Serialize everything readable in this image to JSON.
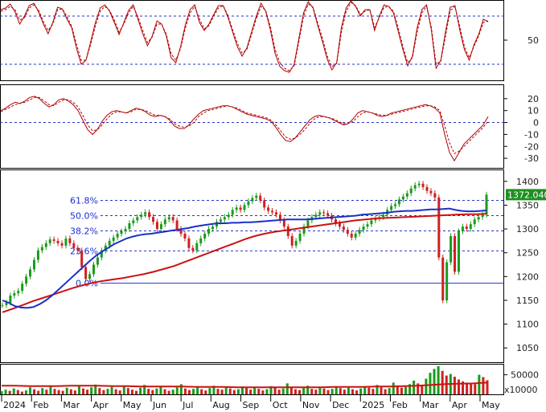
{
  "chart_data": {
    "type": "line",
    "colors": {
      "background": "#ffffff",
      "frame": "#000000",
      "up_bar": "#1a9b1a",
      "down_bar": "#d02020",
      "ma_short": "#1a30c8",
      "ma_long": "#cc1111",
      "oscillator": "#b00000",
      "guide": "#2233cc",
      "price_box": "#1f8f1f"
    },
    "x_axis": {
      "months": [
        "2024",
        "Feb",
        "Mar",
        "Apr",
        "May",
        "Jun",
        "Jul",
        "Aug",
        "Sep",
        "Oct",
        "Nov",
        "Dec",
        "2025",
        "Feb",
        "Mar",
        "Apr",
        "May"
      ]
    },
    "panels": [
      {
        "id": "stochastic",
        "range": [
          0,
          100
        ],
        "ticks": [
          {
            "value": 50,
            "label": "50"
          }
        ],
        "guide_lines": [
          80,
          20
        ],
        "series": [
          {
            "style": "solid",
            "values": [
              88,
              90,
              95,
              85,
              70,
              80,
              93,
              96,
              85,
              70,
              58,
              72,
              91,
              89,
              76,
              65,
              40,
              20,
              25,
              48,
              72,
              90,
              94,
              86,
              72,
              57,
              72,
              87,
              94,
              76,
              58,
              43,
              55,
              74,
              70,
              55,
              28,
              22,
              42,
              69,
              88,
              94,
              72,
              62,
              70,
              82,
              93,
              93,
              79,
              60,
              42,
              30,
              40,
              60,
              80,
              96,
              86,
              62,
              33,
              17,
              12,
              10,
              20,
              52,
              84,
              98,
              90,
              68,
              48,
              26,
              13,
              22,
              66,
              90,
              99,
              92,
              80,
              88,
              88,
              62,
              80,
              94,
              92,
              84,
              61,
              38,
              18,
              30,
              65,
              88,
              94,
              63,
              15,
              25,
              60,
              91,
              93,
              63,
              38,
              25,
              44,
              57,
              76,
              73
            ]
          },
          {
            "style": "dashed",
            "values": [
              86,
              88,
              92,
              88,
              75,
              78,
              90,
              94,
              87,
              73,
              62,
              70,
              88,
              89,
              79,
              67,
              45,
              25,
              25,
              45,
              68,
              86,
              92,
              87,
              75,
              60,
              70,
              84,
              92,
              79,
              62,
              47,
              54,
              70,
              70,
              57,
              33,
              25,
              40,
              65,
              84,
              92,
              76,
              64,
              68,
              80,
              90,
              93,
              81,
              63,
              46,
              34,
              38,
              57,
              77,
              92,
              87,
              66,
              38,
              22,
              15,
              12,
              18,
              48,
              80,
              95,
              91,
              71,
              52,
              30,
              17,
              21,
              60,
              86,
              97,
              93,
              82,
              86,
              88,
              66,
              78,
              91,
              92,
              86,
              65,
              42,
              22,
              28,
              60,
              84,
              92,
              66,
              20,
              24,
              55,
              87,
              92,
              67,
              42,
              28,
              42,
              55,
              72,
              74
            ]
          }
        ]
      },
      {
        "id": "macd",
        "range": [
          -38,
          32
        ],
        "ticks": [
          {
            "value": 20,
            "label": "20"
          },
          {
            "value": 10,
            "label": "10"
          },
          {
            "value": 0,
            "label": "0"
          },
          {
            "value": -10,
            "label": "-10"
          },
          {
            "value": -20,
            "label": "-20"
          },
          {
            "value": -30,
            "label": "-30"
          }
        ],
        "guide_lines": [
          0
        ],
        "series": [
          {
            "style": "solid",
            "values": [
              10,
              12,
              15,
              17,
              16,
              18,
              21,
              22,
              20,
              16,
              13,
              15,
              19,
              20,
              18,
              15,
              10,
              2,
              -6,
              -10,
              -6,
              1,
              6,
              9,
              10,
              9,
              8,
              10,
              12,
              11,
              9,
              6,
              5,
              6,
              5,
              2,
              -3,
              -5,
              -5,
              -2,
              3,
              7,
              10,
              11,
              12,
              13,
              14,
              14,
              13,
              11,
              9,
              7,
              6,
              5,
              4,
              3,
              1,
              -4,
              -10,
              -15,
              -16,
              -13,
              -8,
              -3,
              2,
              5,
              6,
              5,
              4,
              2,
              0,
              -2,
              -1,
              3,
              8,
              10,
              9,
              8,
              6,
              5,
              6,
              8,
              9,
              10,
              11,
              12,
              13,
              14,
              15,
              14,
              12,
              8,
              -10,
              -25,
              -32,
              -25,
              -18,
              -14,
              -10,
              -6,
              -2,
              5
            ]
          },
          {
            "style": "dashed",
            "values": [
              9,
              11,
              13,
              15,
              16,
              17,
              19,
              21,
              21,
              18,
              15,
              14,
              17,
              19,
              19,
              17,
              13,
              6,
              -2,
              -7,
              -6,
              -2,
              3,
              7,
              9,
              9,
              8,
              9,
              11,
              11,
              10,
              8,
              6,
              6,
              5,
              3,
              -1,
              -3,
              -4,
              -3,
              0,
              5,
              8,
              10,
              11,
              12,
              13,
              14,
              13,
              12,
              10,
              8,
              7,
              6,
              5,
              4,
              2,
              -2,
              -7,
              -12,
              -14,
              -13,
              -10,
              -6,
              -1,
              3,
              5,
              5,
              4,
              3,
              1,
              -1,
              -1,
              1,
              5,
              8,
              9,
              8,
              7,
              6,
              6,
              7,
              8,
              9,
              10,
              11,
              12,
              13,
              14,
              14,
              13,
              10,
              -3,
              -17,
              -26,
              -24,
              -20,
              -16,
              -12,
              -8,
              -4,
              1
            ]
          }
        ]
      },
      {
        "id": "price",
        "range": [
          1020,
          1425
        ],
        "ticks": [
          {
            "value": 1400,
            "label": "1400"
          },
          {
            "value": 1350,
            "label": "1350"
          },
          {
            "value": 1300,
            "label": "1300"
          },
          {
            "value": 1250,
            "label": "1250"
          },
          {
            "value": 1200,
            "label": "1200"
          },
          {
            "value": 1150,
            "label": "1150"
          },
          {
            "value": 1100,
            "label": "1100"
          },
          {
            "value": 1050,
            "label": "1050"
          }
        ],
        "fib_levels": [
          {
            "label": "61.8%",
            "value": 1360
          },
          {
            "label": "50.0%",
            "value": 1328
          },
          {
            "label": "38.2%",
            "value": 1296
          },
          {
            "label": "23.6%",
            "value": 1254
          },
          {
            "label": "0.0%",
            "value": 1186
          }
        ],
        "last_price_label": "1372.040",
        "last_price": 1372.04,
        "close": [
          1140,
          1145,
          1160,
          1165,
          1170,
          1185,
          1200,
          1215,
          1235,
          1255,
          1262,
          1270,
          1278,
          1275,
          1270,
          1265,
          1280,
          1270,
          1260,
          1255,
          1220,
          1195,
          1205,
          1225,
          1240,
          1255,
          1265,
          1275,
          1282,
          1290,
          1295,
          1300,
          1312,
          1318,
          1325,
          1330,
          1335,
          1325,
          1315,
          1300,
          1310,
          1320,
          1325,
          1318,
          1300,
          1290,
          1280,
          1260,
          1255,
          1270,
          1280,
          1290,
          1300,
          1305,
          1315,
          1320,
          1325,
          1330,
          1340,
          1345,
          1340,
          1350,
          1358,
          1365,
          1370,
          1360,
          1345,
          1338,
          1335,
          1330,
          1318,
          1305,
          1285,
          1265,
          1275,
          1290,
          1305,
          1318,
          1325,
          1330,
          1335,
          1333,
          1328,
          1320,
          1312,
          1305,
          1298,
          1290,
          1282,
          1290,
          1298,
          1305,
          1310,
          1318,
          1322,
          1325,
          1330,
          1340,
          1348,
          1352,
          1362,
          1368,
          1375,
          1385,
          1392,
          1395,
          1388,
          1380,
          1375,
          1366,
          1240,
          1150,
          1230,
          1285,
          1210,
          1295,
          1305,
          1300,
          1310,
          1320,
          1325,
          1330,
          1372
        ],
        "ma_short": [
          1150,
          1145,
          1138,
          1135,
          1134,
          1136,
          1142,
          1150,
          1160,
          1172,
          1184,
          1196,
          1208,
          1220,
          1232,
          1243,
          1252,
          1260,
          1268,
          1274,
          1280,
          1284,
          1287,
          1289,
          1290,
          1292,
          1294,
          1296,
          1298,
          1300,
          1302,
          1305,
          1307,
          1309,
          1311,
          1312,
          1312,
          1313,
          1313,
          1314,
          1314,
          1315,
          1316,
          1317,
          1318,
          1319,
          1320,
          1320,
          1320,
          1320,
          1321,
          1322,
          1323,
          1324,
          1325,
          1326,
          1327,
          1328,
          1330,
          1331,
          1332,
          1333,
          1334,
          1336,
          1337,
          1338,
          1338,
          1339,
          1340,
          1341,
          1341,
          1342,
          1343,
          1340,
          1338,
          1337,
          1337,
          1338,
          1339
        ],
        "ma_long": [
          1125,
          1132,
          1140,
          1148,
          1155,
          1162,
          1169,
          1176,
          1182,
          1187,
          1191,
          1194,
          1197,
          1201,
          1205,
          1210,
          1216,
          1222,
          1230,
          1238,
          1246,
          1254,
          1262,
          1270,
          1278,
          1285,
          1290,
          1294,
          1297,
          1300,
          1303,
          1306,
          1309,
          1312,
          1315,
          1318,
          1320,
          1322,
          1323,
          1324,
          1325,
          1326,
          1327,
          1328,
          1329,
          1330,
          1331,
          1331,
          1332
        ]
      },
      {
        "id": "volume",
        "range": [
          0,
          78000
        ],
        "ticks": [
          {
            "value": 50000,
            "label": "50000"
          }
        ],
        "unit_label": "x10000",
        "values": [
          8,
          12,
          9,
          15,
          11,
          7,
          10,
          18,
          13,
          9,
          16,
          12,
          20,
          14,
          11,
          9,
          17,
          13,
          10,
          22,
          15,
          12,
          18,
          25,
          16,
          11,
          14,
          19,
          13,
          10,
          21,
          16,
          12,
          9,
          17,
          24,
          14,
          11,
          15,
          20,
          13,
          9,
          12,
          18,
          26,
          15,
          11,
          14,
          19,
          13,
          10,
          16,
          22,
          14,
          12,
          18,
          15,
          11,
          13,
          20,
          16,
          12,
          17,
          14,
          10,
          13,
          21,
          17,
          12,
          15,
          28,
          19,
          13,
          11,
          16,
          22,
          14,
          12,
          18,
          15,
          11,
          14,
          20,
          16,
          12,
          17,
          13,
          10,
          15,
          21,
          17,
          14,
          24,
          18,
          13,
          16,
          30,
          22,
          17,
          19,
          26,
          35,
          28,
          24,
          40,
          55,
          65,
          72,
          60,
          48,
          52,
          45,
          38,
          33,
          30,
          28,
          26,
          50,
          44,
          36
        ],
        "average": [
          22,
          22,
          21,
          21,
          21,
          22,
          22,
          22,
          21,
          21,
          20,
          20,
          20,
          20,
          19,
          19,
          19,
          18,
          18,
          18,
          18,
          18,
          18,
          18,
          19,
          19,
          19,
          20,
          20,
          21,
          22,
          24,
          26,
          27,
          28,
          30
        ]
      }
    ]
  }
}
